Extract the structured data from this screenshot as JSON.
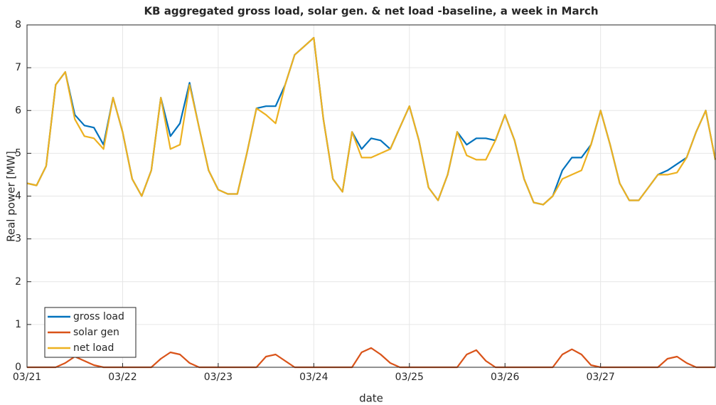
{
  "chart_data": {
    "type": "line",
    "title": "KB aggregated gross load, solar gen. & net load -baseline, a week in March",
    "xlabel": "date",
    "ylabel": "Real power [MW]",
    "x": [
      0,
      0.1,
      0.2,
      0.3,
      0.4,
      0.5,
      0.6,
      0.7,
      0.8,
      0.9,
      1,
      1.1,
      1.2,
      1.3,
      1.4,
      1.5,
      1.6,
      1.7,
      1.8,
      1.9,
      2,
      2.1,
      2.2,
      2.3,
      2.4,
      2.5,
      2.6,
      2.7,
      2.8,
      2.9,
      3,
      3.1,
      3.2,
      3.3,
      3.4,
      3.5,
      3.6,
      3.7,
      3.8,
      3.9,
      4,
      4.1,
      4.2,
      4.3,
      4.4,
      4.5,
      4.6,
      4.7,
      4.8,
      4.9,
      5,
      5.1,
      5.2,
      5.3,
      5.4,
      5.5,
      5.6,
      5.7,
      5.8,
      5.9,
      6,
      6.1,
      6.2,
      6.3,
      6.4,
      6.5,
      6.6,
      6.7,
      6.8,
      6.9,
      7,
      7.1,
      7.2
    ],
    "series": [
      {
        "name": "gross load",
        "color": "#0072bd",
        "values": [
          4.3,
          4.25,
          4.7,
          6.6,
          6.9,
          5.9,
          5.65,
          5.6,
          5.2,
          6.3,
          5.5,
          4.4,
          4.0,
          4.6,
          6.3,
          5.4,
          5.7,
          6.65,
          5.6,
          4.6,
          4.15,
          4.05,
          4.05,
          5.0,
          6.05,
          6.1,
          6.1,
          6.6,
          7.3,
          7.5,
          7.7,
          5.8,
          4.4,
          4.1,
          5.5,
          5.1,
          5.35,
          5.3,
          5.1,
          5.6,
          6.1,
          5.3,
          4.2,
          3.9,
          4.5,
          5.5,
          5.2,
          5.35,
          5.35,
          5.3,
          5.9,
          5.3,
          4.4,
          3.85,
          3.8,
          4.0,
          4.6,
          4.9,
          4.9,
          5.2,
          6.0,
          5.2,
          4.3,
          3.9,
          3.9,
          4.2,
          4.5,
          4.6,
          4.75,
          4.9,
          5.5,
          6.0,
          4.85
        ]
      },
      {
        "name": "solar gen",
        "color": "#d95319",
        "values": [
          0,
          0,
          0,
          0,
          0.1,
          0.25,
          0.15,
          0.05,
          0,
          0,
          0,
          0,
          0,
          0,
          0.2,
          0.35,
          0.3,
          0.1,
          0,
          0,
          0,
          0,
          0,
          0,
          0,
          0.25,
          0.3,
          0.15,
          0,
          0,
          0,
          0,
          0,
          0,
          0,
          0.35,
          0.45,
          0.3,
          0.1,
          0,
          0,
          0,
          0,
          0,
          0,
          0,
          0.3,
          0.4,
          0.15,
          0,
          0,
          0,
          0,
          0,
          0,
          0,
          0.3,
          0.42,
          0.3,
          0.05,
          0,
          0,
          0,
          0,
          0,
          0,
          0,
          0.2,
          0.25,
          0.1,
          0,
          0,
          0
        ]
      },
      {
        "name": "net load",
        "color": "#edb120",
        "values": [
          4.3,
          4.25,
          4.7,
          6.6,
          6.9,
          5.8,
          5.4,
          5.35,
          5.1,
          6.3,
          5.5,
          4.4,
          4.0,
          4.6,
          6.3,
          5.1,
          5.2,
          6.6,
          5.6,
          4.6,
          4.15,
          4.05,
          4.05,
          5.0,
          6.05,
          5.9,
          5.7,
          6.6,
          7.3,
          7.5,
          7.7,
          5.8,
          4.4,
          4.1,
          5.5,
          4.9,
          4.9,
          5.0,
          5.1,
          5.6,
          6.1,
          5.3,
          4.2,
          3.9,
          4.5,
          5.5,
          4.95,
          4.85,
          4.85,
          5.3,
          5.9,
          5.3,
          4.4,
          3.85,
          3.8,
          4.0,
          4.4,
          4.5,
          4.6,
          5.2,
          6.0,
          5.2,
          4.3,
          3.9,
          3.9,
          4.2,
          4.5,
          4.5,
          4.55,
          4.9,
          5.5,
          6.0,
          4.85
        ]
      }
    ],
    "xlim": [
      0,
      7.2
    ],
    "xticks": [
      {
        "value": 0,
        "label": "03/21"
      },
      {
        "value": 1,
        "label": "03/22"
      },
      {
        "value": 2,
        "label": "03/23"
      },
      {
        "value": 3,
        "label": "03/24"
      },
      {
        "value": 4,
        "label": "03/25"
      },
      {
        "value": 5,
        "label": "03/26"
      },
      {
        "value": 6,
        "label": "03/27"
      }
    ],
    "ylim": [
      0,
      8
    ],
    "yticks": [
      0,
      1,
      2,
      3,
      4,
      5,
      6,
      7,
      8
    ],
    "grid": true,
    "legend": "lower-left"
  }
}
